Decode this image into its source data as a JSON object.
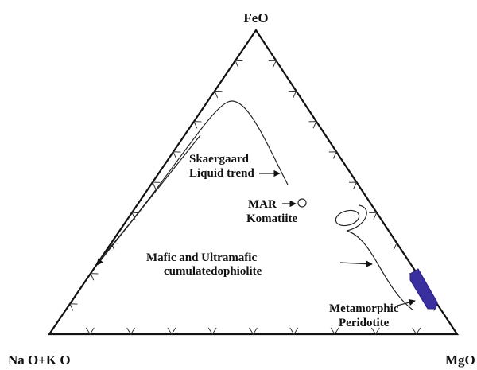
{
  "vertices": {
    "top": "FeO",
    "left": "Na O+K O",
    "right": "MgO"
  },
  "labels": {
    "skaergaard": [
      "Skaergaard",
      "Liquid trend"
    ],
    "mar": "MAR",
    "komatiite": "Komatiite",
    "mafic": [
      "Mafic and Ultramafic",
      "cumulatedophiolite"
    ],
    "metamorphic": [
      "Metamorphic",
      "Peridotite"
    ]
  }
}
